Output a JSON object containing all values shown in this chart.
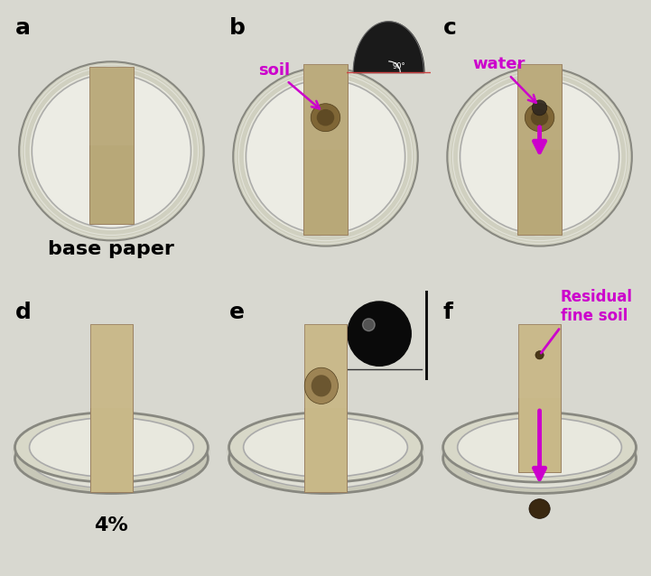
{
  "panel_labels": [
    "a",
    "b",
    "c",
    "d",
    "e",
    "f"
  ],
  "label_color": "#000000",
  "label_fontsize": 18,
  "label_fontweight": "bold",
  "bg_color": "#d8d8d0",
  "panel_bg_top": "#dcdcd4",
  "panel_bg_bot": "#e8e8e0",
  "text_base_paper": "base paper",
  "text_base_paper_fontsize": 16,
  "text_base_paper_fontweight": "bold",
  "text_4pct": "4%",
  "text_4pct_fontsize": 16,
  "text_4pct_fontweight": "bold",
  "text_soil": "soil",
  "text_soil_fontsize": 13,
  "text_soil_color": "#cc00cc",
  "text_water": "water",
  "text_water_fontsize": 13,
  "text_water_color": "#cc00cc",
  "text_residual": "Residual\nfine soil",
  "text_residual_fontsize": 12,
  "text_residual_color": "#cc00cc",
  "arrow_color": "#cc00cc",
  "dish_rim_color": "#c8c8b8",
  "dish_inner_color": "#e8e8dc",
  "dish_edge_color": "#909090",
  "paper_color_a": "#b8a878",
  "paper_color_de": "#c8b888",
  "soil_dark": "#4a3818",
  "soil_mid": "#7a6030",
  "inset_b_bg": "#080808",
  "inset_e_bg": "#f8f8f8",
  "figsize": [
    7.21,
    6.38
  ],
  "dpi": 100
}
